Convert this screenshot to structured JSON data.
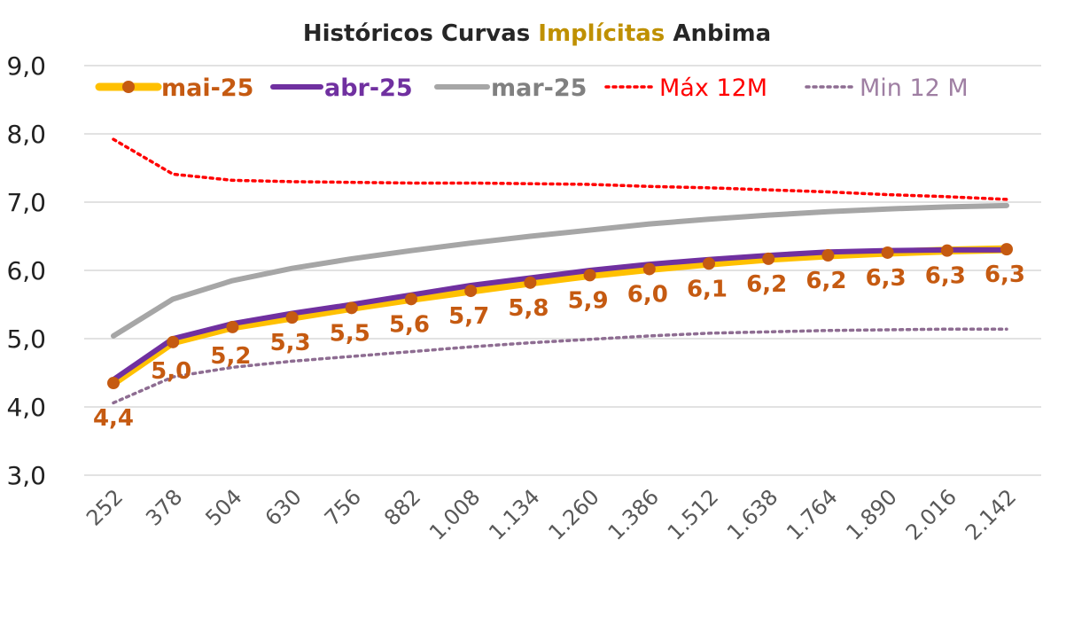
{
  "chart_data": {
    "type": "line",
    "title_parts": [
      "Históricos Curvas ",
      "Implícitas",
      " Anbima"
    ],
    "title_colors": [
      "#262626",
      "#BF9000",
      "#262626"
    ],
    "ylim": [
      3.0,
      9.0
    ],
    "yticks": [
      3.0,
      4.0,
      5.0,
      6.0,
      7.0,
      8.0,
      9.0
    ],
    "ytick_labels": [
      "3,0",
      "4,0",
      "5,0",
      "6,0",
      "7,0",
      "8,0",
      "9,0"
    ],
    "categories": [
      "252",
      "378",
      "504",
      "630",
      "756",
      "882",
      "1.008",
      "1.134",
      "1.260",
      "1.386",
      "1.512",
      "1.638",
      "1.764",
      "1.890",
      "2.016",
      "2.142"
    ],
    "grid": true,
    "legend_position": "top",
    "series": [
      {
        "name": "mai-25",
        "line_color": "#FFC000",
        "marker_color": "#C55A11",
        "label_color": "#C55A11",
        "values": [
          4.35,
          4.95,
          5.17,
          5.31,
          5.45,
          5.58,
          5.7,
          5.82,
          5.93,
          6.02,
          6.1,
          6.17,
          6.22,
          6.26,
          6.29,
          6.31
        ],
        "data_labels": [
          "4,4",
          "5,0",
          "5,2",
          "5,3",
          "5,5",
          "5,6",
          "5,7",
          "5,8",
          "5,9",
          "6,0",
          "6,1",
          "6,2",
          "6,2",
          "6,3",
          "6,3",
          "6,3"
        ]
      },
      {
        "name": "abr-25",
        "line_color": "#7030A0",
        "label_color": "#7030A0",
        "values": [
          4.4,
          5.0,
          5.22,
          5.37,
          5.5,
          5.64,
          5.78,
          5.89,
          6.0,
          6.09,
          6.16,
          6.22,
          6.27,
          6.29,
          6.3,
          6.3
        ]
      },
      {
        "name": "mar-25",
        "line_color": "#A6A6A6",
        "label_color": "#808080",
        "values": [
          5.04,
          5.58,
          5.85,
          6.03,
          6.17,
          6.29,
          6.4,
          6.5,
          6.59,
          6.68,
          6.75,
          6.81,
          6.86,
          6.9,
          6.93,
          6.95
        ]
      },
      {
        "name": "Máx 12M",
        "line_color": "#FF0000",
        "label_color": "#FF0000",
        "values": [
          7.92,
          7.41,
          7.32,
          7.3,
          7.29,
          7.28,
          7.28,
          7.27,
          7.26,
          7.23,
          7.21,
          7.18,
          7.15,
          7.11,
          7.08,
          7.04
        ]
      },
      {
        "name": "Min 12 M",
        "line_color": "#8E6D92",
        "label_color": "#9F7FA3",
        "values": [
          4.06,
          4.44,
          4.58,
          4.67,
          4.74,
          4.81,
          4.88,
          4.94,
          4.99,
          5.04,
          5.08,
          5.1,
          5.12,
          5.13,
          5.14,
          5.14
        ]
      }
    ]
  }
}
